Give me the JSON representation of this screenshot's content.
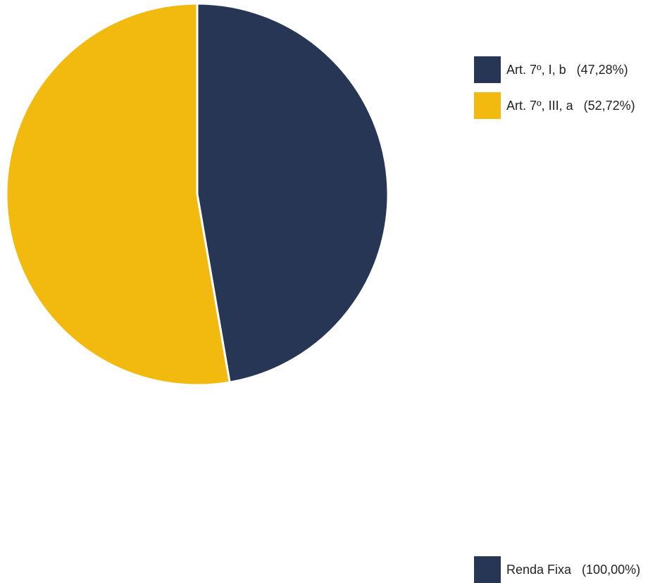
{
  "chart_data": [
    {
      "type": "pie",
      "slices": [
        {
          "label": "Art. 7º, I, b",
          "value": 47.28,
          "legend": "Art. 7º, I, b   (47,28%)",
          "color": "#263654"
        },
        {
          "label": "Art. 7º, III, a",
          "value": 52.72,
          "legend": "Art. 7º, III, a   (52,72%)",
          "color": "#F2B90F"
        }
      ],
      "legend_position": "top-right"
    },
    {
      "type": "pie",
      "slices": [
        {
          "label": "Renda Fixa",
          "value": 100.0,
          "legend": "Renda Fixa   (100,00%)",
          "color": "#263654"
        }
      ],
      "legend_position": "bottom-right"
    }
  ]
}
